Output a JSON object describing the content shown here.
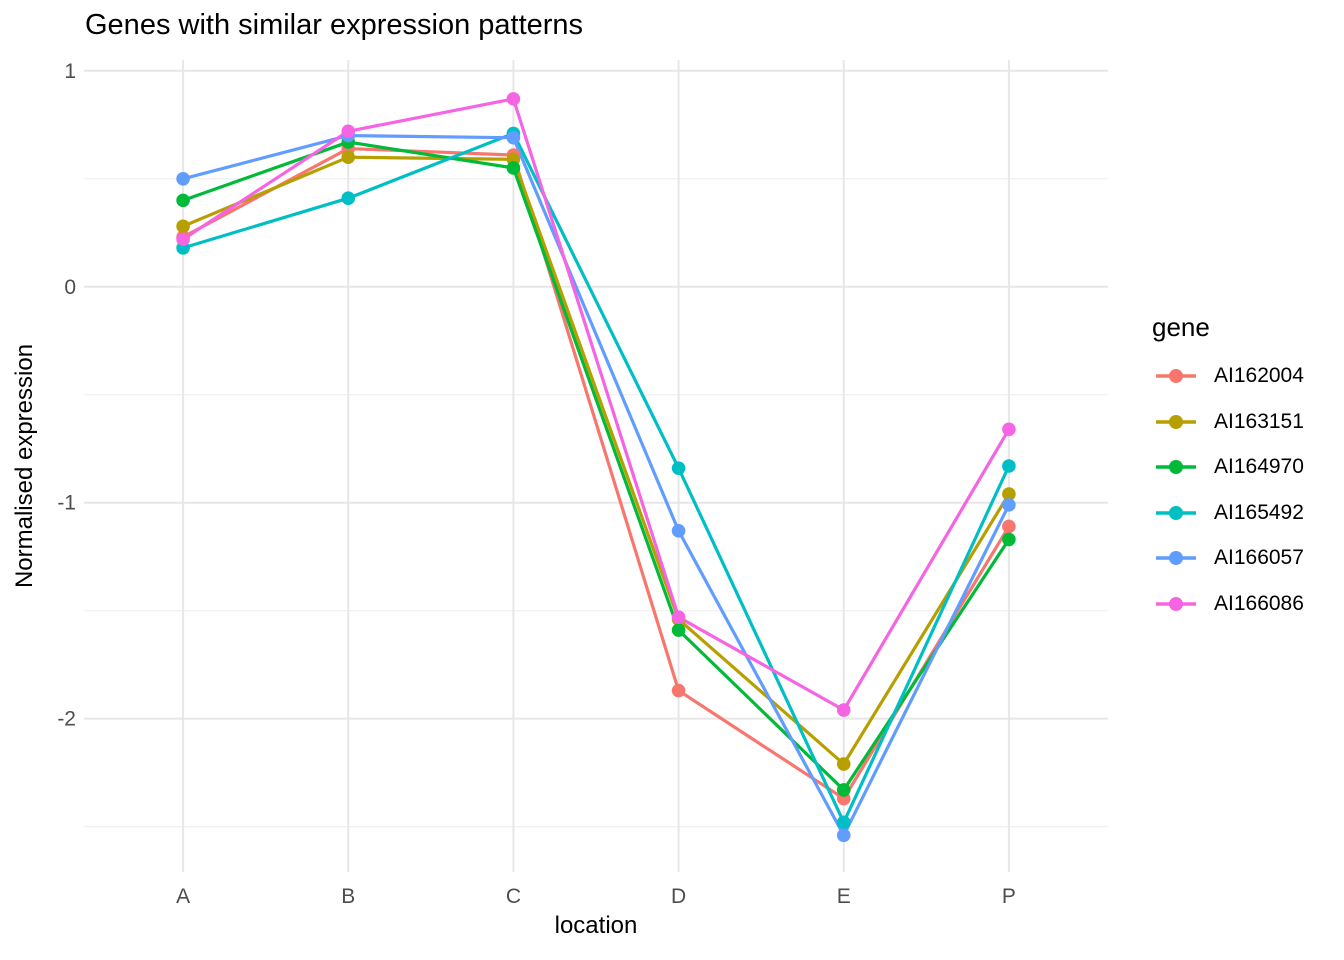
{
  "chart_data": {
    "type": "line",
    "title": "Genes with similar expression patterns",
    "xlabel": "location",
    "ylabel": "Normalised expression",
    "legend_title": "gene",
    "legend_position": "right",
    "grid": true,
    "categories": [
      "A",
      "B",
      "C",
      "D",
      "E",
      "P"
    ],
    "ylim": [
      -2.71,
      1.05
    ],
    "y_major_ticks": [
      1,
      0,
      -1,
      -2
    ],
    "y_minor_ticks": [
      0.5,
      -0.5,
      -1.5,
      -2.5
    ],
    "series": [
      {
        "name": "AI162004",
        "color": "#F8766D",
        "values": [
          0.23,
          0.64,
          0.61,
          -1.87,
          -2.37,
          -1.11
        ]
      },
      {
        "name": "AI163151",
        "color": "#B79F00",
        "values": [
          0.28,
          0.6,
          0.59,
          -1.54,
          -2.21,
          -0.96
        ]
      },
      {
        "name": "AI164970",
        "color": "#00BA38",
        "values": [
          0.4,
          0.67,
          0.55,
          -1.59,
          -2.33,
          -1.17
        ]
      },
      {
        "name": "AI165492",
        "color": "#00BFC4",
        "values": [
          0.18,
          0.41,
          0.71,
          -0.84,
          -2.48,
          -0.83
        ]
      },
      {
        "name": "AI166057",
        "color": "#619CFF",
        "values": [
          0.5,
          0.7,
          0.69,
          -1.13,
          -2.54,
          -1.01
        ]
      },
      {
        "name": "AI166086",
        "color": "#F564E3",
        "values": [
          0.22,
          0.72,
          0.87,
          -1.53,
          -1.96,
          -0.66
        ]
      }
    ],
    "grid_major_color": "#E7E7E7",
    "grid_minor_color": "#F0F0F0"
  }
}
